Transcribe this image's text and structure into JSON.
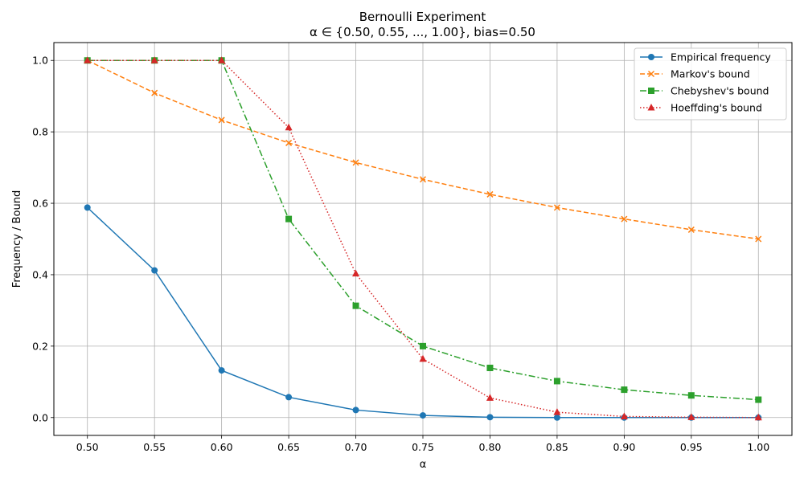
{
  "chart_data": {
    "type": "line",
    "title": "Bernoulli Experiment",
    "subtitle": "α ∈ {0.50, 0.55, ..., 1.00}, bias=0.50",
    "xlabel": "α",
    "ylabel": "Frequency / Bound",
    "x": [
      0.5,
      0.55,
      0.6,
      0.65,
      0.7,
      0.75,
      0.8,
      0.85,
      0.9,
      0.95,
      1.0
    ],
    "x_tick_labels": [
      "0.50",
      "0.55",
      "0.60",
      "0.65",
      "0.70",
      "0.75",
      "0.80",
      "0.85",
      "0.90",
      "0.95",
      "1.00"
    ],
    "y_ticks": [
      0.0,
      0.2,
      0.4,
      0.6,
      0.8,
      1.0
    ],
    "y_tick_labels": [
      "0.0",
      "0.2",
      "0.4",
      "0.6",
      "0.8",
      "1.0"
    ],
    "xlim": [
      0.475,
      1.025
    ],
    "ylim": [
      -0.05,
      1.05
    ],
    "grid": true,
    "legend_position": "top-right",
    "series": [
      {
        "name": "Empirical frequency",
        "color": "#1f77b4",
        "linestyle": "solid",
        "marker": "circle",
        "values": [
          0.588,
          0.412,
          0.132,
          0.057,
          0.021,
          0.006,
          0.001,
          0.0,
          0.0,
          0.0,
          0.0
        ]
      },
      {
        "name": "Markov's bound",
        "color": "#ff7f0e",
        "linestyle": "dashed",
        "marker": "x",
        "values": [
          1.0,
          0.909,
          0.833,
          0.769,
          0.714,
          0.667,
          0.625,
          0.588,
          0.556,
          0.526,
          0.5
        ]
      },
      {
        "name": "Chebyshev's bound",
        "color": "#2ca02c",
        "linestyle": "dashdot",
        "marker": "square",
        "values": [
          1.0,
          1.0,
          1.0,
          0.556,
          0.313,
          0.2,
          0.139,
          0.102,
          0.078,
          0.062,
          0.05
        ]
      },
      {
        "name": "Hoeffding's bound",
        "color": "#d62728",
        "linestyle": "dotted",
        "marker": "triangle",
        "values": [
          1.0,
          1.0,
          1.0,
          0.812,
          0.403,
          0.164,
          0.055,
          0.015,
          0.003,
          0.001,
          0.0
        ]
      }
    ]
  }
}
